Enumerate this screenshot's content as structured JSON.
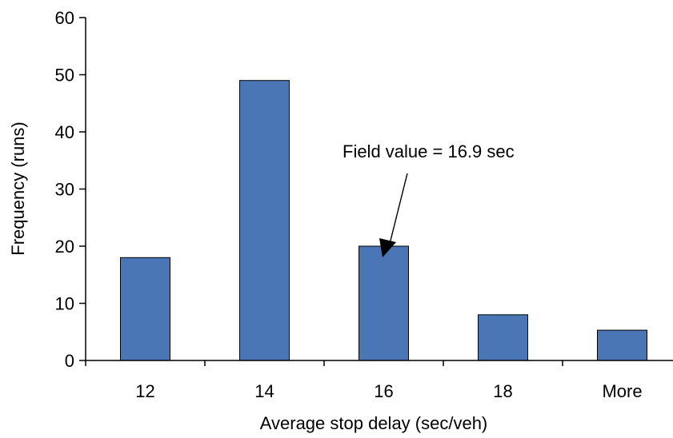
{
  "chart_data": {
    "type": "bar",
    "title": "",
    "xlabel": "Average stop delay (sec/veh)",
    "ylabel": "Frequency (runs)",
    "categories": [
      "12",
      "14",
      "16",
      "18",
      "More"
    ],
    "values": [
      18,
      49,
      20,
      8,
      5.3
    ],
    "ylim": [
      0,
      60
    ],
    "yticks": [
      "0",
      "10",
      "20",
      "30",
      "40",
      "50",
      "60"
    ],
    "grid": false,
    "legend": "none",
    "bar_color": "#4a76b5",
    "annotation": {
      "text": "Field value = 16.9 sec",
      "points_to_category": "16"
    }
  }
}
